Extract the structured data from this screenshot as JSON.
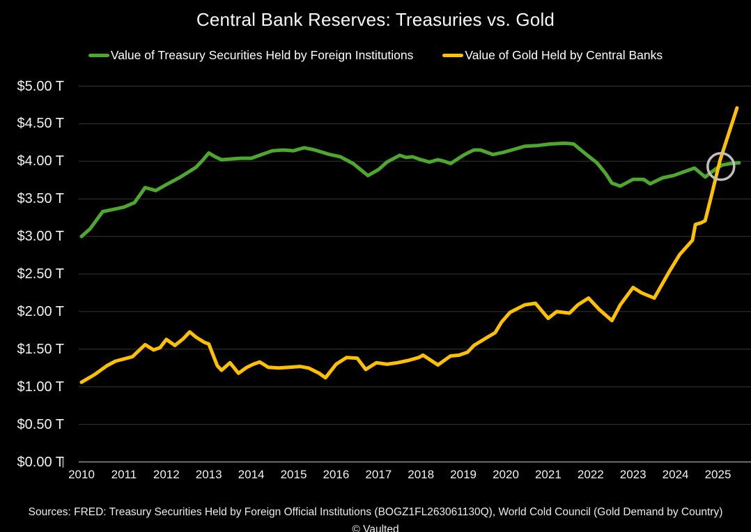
{
  "title": "Central Bank Reserves: Treasuries vs. Gold",
  "footer": {
    "sources": "Sources: FRED: Treasury Securities Held by Foreign Official Institutions (BOGZ1FL263061130Q), World Cold Council (Gold Demand by Country)",
    "credit": "© Vaulted"
  },
  "colors": {
    "background": "#000000",
    "text": "#f2f2f2",
    "grid": "#373737",
    "baseline": "#8f8f8f",
    "treasury_green": "#4ea72e",
    "gold_yellow": "#ffc000",
    "annotation_circle": "#c0c0c0"
  },
  "chart_data": {
    "type": "line",
    "title": "Central Bank Reserves: Treasuries vs. Gold",
    "xlabel": "",
    "ylabel": "",
    "grid": true,
    "legend_position": "top",
    "y_axis": {
      "min": 0,
      "max": 5,
      "step": 0.5,
      "unit": "trillion USD",
      "labels": [
        "$0.00 T",
        "$0.50 T",
        "$1.00 T",
        "$1.50 T",
        "$2.00 T",
        "$2.50 T",
        "$3.00 T",
        "$3.50 T",
        "$4.00 T",
        "$4.50 T",
        "$5.00 T"
      ]
    },
    "x_axis": {
      "min": 2010,
      "max": 2025.8,
      "tick_values": [
        2010,
        2011,
        2012,
        2013,
        2014,
        2015,
        2016,
        2017,
        2018,
        2019,
        2020,
        2021,
        2022,
        2023,
        2024,
        2025
      ],
      "labels": [
        "2010",
        "2011",
        "2012",
        "2013",
        "2014",
        "2015",
        "2016",
        "2017",
        "2018",
        "2019",
        "2020",
        "2021",
        "2022",
        "2023",
        "2024",
        "2025"
      ]
    },
    "series": [
      {
        "name": "Value of Treasury Securities Held by Foreign Institutions",
        "color": "#4ea72e",
        "points": [
          [
            2010.0,
            3.0
          ],
          [
            2010.2,
            3.1
          ],
          [
            2010.5,
            3.33
          ],
          [
            2010.75,
            3.36
          ],
          [
            2011.0,
            3.39
          ],
          [
            2011.25,
            3.45
          ],
          [
            2011.5,
            3.65
          ],
          [
            2011.75,
            3.61
          ],
          [
            2012.0,
            3.69
          ],
          [
            2012.3,
            3.78
          ],
          [
            2012.5,
            3.85
          ],
          [
            2012.7,
            3.92
          ],
          [
            2012.85,
            4.01
          ],
          [
            2013.0,
            4.11
          ],
          [
            2013.15,
            4.06
          ],
          [
            2013.3,
            4.02
          ],
          [
            2013.5,
            4.03
          ],
          [
            2013.75,
            4.04
          ],
          [
            2014.0,
            4.04
          ],
          [
            2014.3,
            4.1
          ],
          [
            2014.5,
            4.14
          ],
          [
            2014.75,
            4.15
          ],
          [
            2015.0,
            4.14
          ],
          [
            2015.25,
            4.18
          ],
          [
            2015.5,
            4.15
          ],
          [
            2015.85,
            4.09
          ],
          [
            2016.1,
            4.06
          ],
          [
            2016.4,
            3.97
          ],
          [
            2016.75,
            3.81
          ],
          [
            2017.0,
            3.89
          ],
          [
            2017.2,
            3.99
          ],
          [
            2017.5,
            4.08
          ],
          [
            2017.65,
            4.05
          ],
          [
            2017.8,
            4.06
          ],
          [
            2018.0,
            4.02
          ],
          [
            2018.2,
            3.99
          ],
          [
            2018.4,
            4.02
          ],
          [
            2018.55,
            4.0
          ],
          [
            2018.7,
            3.97
          ],
          [
            2019.0,
            4.08
          ],
          [
            2019.1,
            4.11
          ],
          [
            2019.25,
            4.15
          ],
          [
            2019.4,
            4.15
          ],
          [
            2019.7,
            4.09
          ],
          [
            2019.95,
            4.12
          ],
          [
            2020.2,
            4.16
          ],
          [
            2020.45,
            4.2
          ],
          [
            2020.75,
            4.21
          ],
          [
            2021.05,
            4.23
          ],
          [
            2021.4,
            4.24
          ],
          [
            2021.6,
            4.23
          ],
          [
            2021.9,
            4.09
          ],
          [
            2022.15,
            3.98
          ],
          [
            2022.35,
            3.84
          ],
          [
            2022.5,
            3.71
          ],
          [
            2022.7,
            3.67
          ],
          [
            2023.0,
            3.76
          ],
          [
            2023.25,
            3.76
          ],
          [
            2023.4,
            3.7
          ],
          [
            2023.7,
            3.78
          ],
          [
            2023.95,
            3.81
          ],
          [
            2024.15,
            3.85
          ],
          [
            2024.45,
            3.91
          ],
          [
            2024.7,
            3.79
          ],
          [
            2024.95,
            3.9
          ],
          [
            2025.1,
            3.95
          ],
          [
            2025.3,
            3.97
          ],
          [
            2025.5,
            3.98
          ]
        ]
      },
      {
        "name": "Value of Gold Held by Central Banks",
        "color": "#ffc000",
        "points": [
          [
            2010.0,
            1.06
          ],
          [
            2010.3,
            1.16
          ],
          [
            2010.6,
            1.28
          ],
          [
            2010.8,
            1.34
          ],
          [
            2011.0,
            1.37
          ],
          [
            2011.2,
            1.4
          ],
          [
            2011.5,
            1.56
          ],
          [
            2011.7,
            1.49
          ],
          [
            2011.85,
            1.52
          ],
          [
            2012.0,
            1.63
          ],
          [
            2012.2,
            1.55
          ],
          [
            2012.4,
            1.64
          ],
          [
            2012.55,
            1.73
          ],
          [
            2012.7,
            1.66
          ],
          [
            2012.9,
            1.59
          ],
          [
            2013.0,
            1.57
          ],
          [
            2013.2,
            1.28
          ],
          [
            2013.3,
            1.22
          ],
          [
            2013.5,
            1.32
          ],
          [
            2013.7,
            1.18
          ],
          [
            2013.9,
            1.26
          ],
          [
            2014.05,
            1.3
          ],
          [
            2014.2,
            1.33
          ],
          [
            2014.4,
            1.26
          ],
          [
            2014.65,
            1.25
          ],
          [
            2014.9,
            1.26
          ],
          [
            2015.15,
            1.27
          ],
          [
            2015.35,
            1.25
          ],
          [
            2015.6,
            1.18
          ],
          [
            2015.75,
            1.12
          ],
          [
            2016.0,
            1.3
          ],
          [
            2016.25,
            1.39
          ],
          [
            2016.5,
            1.38
          ],
          [
            2016.7,
            1.23
          ],
          [
            2016.95,
            1.32
          ],
          [
            2017.2,
            1.3
          ],
          [
            2017.45,
            1.32
          ],
          [
            2017.7,
            1.35
          ],
          [
            2017.95,
            1.39
          ],
          [
            2018.05,
            1.42
          ],
          [
            2018.4,
            1.29
          ],
          [
            2018.7,
            1.41
          ],
          [
            2018.9,
            1.42
          ],
          [
            2019.1,
            1.46
          ],
          [
            2019.25,
            1.55
          ],
          [
            2019.6,
            1.67
          ],
          [
            2019.75,
            1.72
          ],
          [
            2019.9,
            1.86
          ],
          [
            2020.1,
            1.99
          ],
          [
            2020.45,
            2.09
          ],
          [
            2020.7,
            2.11
          ],
          [
            2021.0,
            1.91
          ],
          [
            2021.2,
            2.0
          ],
          [
            2021.5,
            1.98
          ],
          [
            2021.7,
            2.09
          ],
          [
            2021.95,
            2.18
          ],
          [
            2022.2,
            2.03
          ],
          [
            2022.5,
            1.88
          ],
          [
            2022.7,
            2.09
          ],
          [
            2023.0,
            2.32
          ],
          [
            2023.2,
            2.25
          ],
          [
            2023.5,
            2.18
          ],
          [
            2023.85,
            2.53
          ],
          [
            2024.1,
            2.76
          ],
          [
            2024.4,
            2.95
          ],
          [
            2024.47,
            3.16
          ],
          [
            2024.6,
            3.18
          ],
          [
            2024.7,
            3.21
          ],
          [
            2024.85,
            3.55
          ],
          [
            2025.05,
            4.01
          ],
          [
            2025.25,
            4.36
          ],
          [
            2025.45,
            4.71
          ]
        ]
      }
    ],
    "annotation": {
      "type": "circle",
      "year": 2025.07,
      "value": 3.93
    }
  }
}
